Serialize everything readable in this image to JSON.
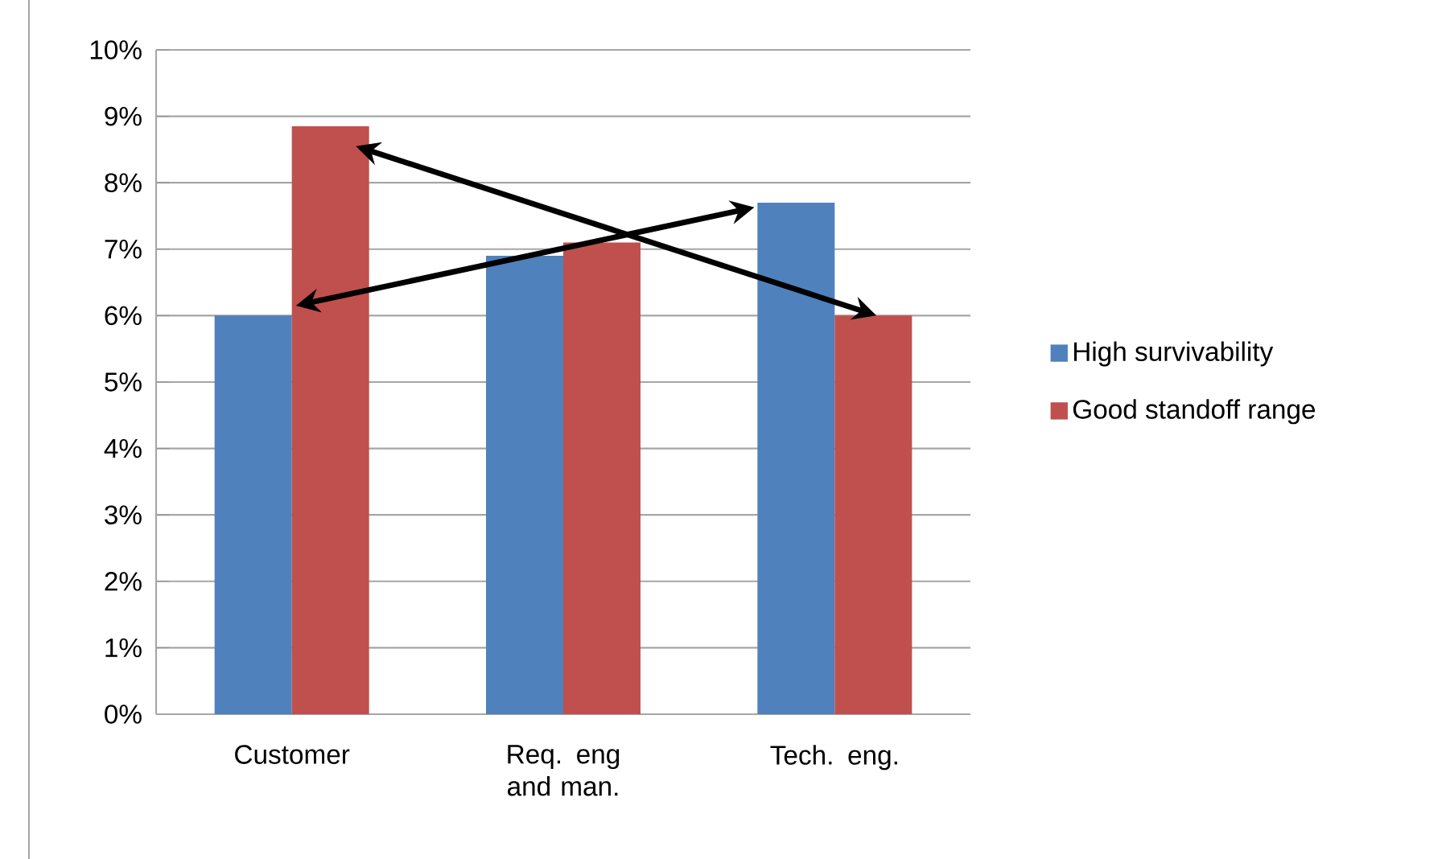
{
  "chart_data": {
    "type": "bar",
    "categories": [
      "Customer",
      "Req. eng and man.",
      "Tech. eng."
    ],
    "series": [
      {
        "name": "High survivability",
        "color": "#4f81bd",
        "values": [
          6.0,
          6.9,
          7.7
        ]
      },
      {
        "name": "Good standoff range",
        "color": "#c0504d",
        "values": [
          8.85,
          7.1,
          6.0
        ]
      }
    ],
    "ylim": [
      0,
      10
    ],
    "yticks": [
      {
        "value": 0,
        "label": "0%"
      },
      {
        "value": 1,
        "label": "1%"
      },
      {
        "value": 2,
        "label": "2%"
      },
      {
        "value": 3,
        "label": "3%"
      },
      {
        "value": 4,
        "label": "4%"
      },
      {
        "value": 5,
        "label": "5%"
      },
      {
        "value": 6,
        "label": "6%"
      },
      {
        "value": 7,
        "label": "7%"
      },
      {
        "value": 8,
        "label": "8%"
      },
      {
        "value": 9,
        "label": "9%"
      },
      {
        "value": 10,
        "label": "10%"
      }
    ],
    "grid": "y",
    "legend": "right"
  }
}
